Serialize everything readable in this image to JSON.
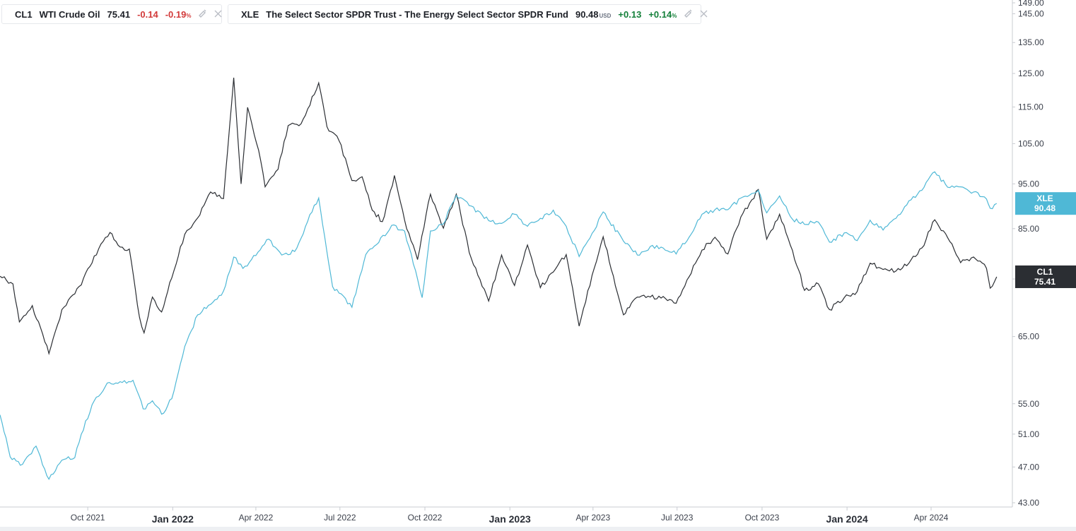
{
  "legend": [
    {
      "symbol": "CL1",
      "name": "WTI Crude Oil",
      "price": "75.41",
      "currency": "",
      "change": "-0.14",
      "change_pct": "-0.19",
      "pct_sign": "%",
      "direction": "down",
      "color": "#2b2e33",
      "icons": [
        "settings-icon",
        "close-icon"
      ]
    },
    {
      "symbol": "XLE",
      "name": "The Select Sector SPDR Trust - The Energy Select Sector SPDR Fund",
      "price": "90.48",
      "currency": "USD",
      "change": "+0.13",
      "change_pct": "+0.14",
      "pct_sign": "%",
      "direction": "up",
      "color": "#4fb8d6",
      "icons": [
        "settings-icon",
        "close-icon"
      ]
    }
  ],
  "chart_data": {
    "type": "line",
    "y_scale": "log",
    "ylim": [
      43,
      149
    ],
    "y_ticks": [
      "149.00",
      "145.00",
      "135.00",
      "125.00",
      "115.00",
      "105.00",
      "95.00",
      "85.00",
      "75.00",
      "65.00",
      "55.00",
      "51.00",
      "47.00",
      "43.00"
    ],
    "xlim": [
      "2021-06-28",
      "2024-06-28"
    ],
    "x_ticks": [
      {
        "label": "Oct 2021",
        "date": "2021-10-01",
        "major": false
      },
      {
        "label": "Jan 2022",
        "date": "2022-01-01",
        "major": true
      },
      {
        "label": "Apr 2022",
        "date": "2022-04-01",
        "major": false
      },
      {
        "label": "Jul 2022",
        "date": "2022-07-01",
        "major": false
      },
      {
        "label": "Oct 2022",
        "date": "2022-10-01",
        "major": false
      },
      {
        "label": "Jan 2023",
        "date": "2023-01-01",
        "major": true
      },
      {
        "label": "Apr 2023",
        "date": "2023-04-01",
        "major": false
      },
      {
        "label": "Jul 2023",
        "date": "2023-07-01",
        "major": false
      },
      {
        "label": "Oct 2023",
        "date": "2023-10-01",
        "major": false
      },
      {
        "label": "Jan 2024",
        "date": "2024-01-01",
        "major": true
      },
      {
        "label": "Apr 2024",
        "date": "2024-04-01",
        "major": false
      }
    ],
    "grid": false,
    "series": [
      {
        "name": "CL1",
        "color": "#2b2e33",
        "last_value": "75.41",
        "points": [
          [
            "2021-06-28",
            75.5
          ],
          [
            "2021-07-12",
            74.1
          ],
          [
            "2021-07-19",
            67.4
          ],
          [
            "2021-08-02",
            70.2
          ],
          [
            "2021-08-20",
            62.3
          ],
          [
            "2021-09-03",
            69.5
          ],
          [
            "2021-09-24",
            73.9
          ],
          [
            "2021-10-08",
            79.4
          ],
          [
            "2021-10-25",
            84.2
          ],
          [
            "2021-11-05",
            81.2
          ],
          [
            "2021-11-15",
            80.8
          ],
          [
            "2021-11-26",
            68.2
          ],
          [
            "2021-12-01",
            65.6
          ],
          [
            "2021-12-10",
            71.7
          ],
          [
            "2021-12-20",
            69.1
          ],
          [
            "2021-12-31",
            75.2
          ],
          [
            "2022-01-14",
            83.8
          ],
          [
            "2022-01-28",
            87.3
          ],
          [
            "2022-02-11",
            93.1
          ],
          [
            "2022-02-25",
            91.6
          ],
          [
            "2022-03-08",
            123.7
          ],
          [
            "2022-03-16",
            95.0
          ],
          [
            "2022-03-23",
            114.9
          ],
          [
            "2022-04-04",
            103.3
          ],
          [
            "2022-04-11",
            94.3
          ],
          [
            "2022-04-25",
            98.5
          ],
          [
            "2022-05-06",
            109.8
          ],
          [
            "2022-05-20",
            110.3
          ],
          [
            "2022-06-08",
            122.1
          ],
          [
            "2022-06-17",
            109.5
          ],
          [
            "2022-06-30",
            105.8
          ],
          [
            "2022-07-14",
            95.8
          ],
          [
            "2022-07-25",
            96.7
          ],
          [
            "2022-08-05",
            89.0
          ],
          [
            "2022-08-16",
            86.5
          ],
          [
            "2022-08-29",
            97.0
          ],
          [
            "2022-09-09",
            86.8
          ],
          [
            "2022-09-23",
            78.7
          ],
          [
            "2022-10-07",
            92.6
          ],
          [
            "2022-10-21",
            85.1
          ],
          [
            "2022-11-04",
            92.6
          ],
          [
            "2022-11-18",
            80.1
          ],
          [
            "2022-12-09",
            71.0
          ],
          [
            "2022-12-23",
            79.6
          ],
          [
            "2023-01-06",
            73.8
          ],
          [
            "2023-01-20",
            81.6
          ],
          [
            "2023-02-03",
            73.4
          ],
          [
            "2023-02-17",
            76.3
          ],
          [
            "2023-03-03",
            79.7
          ],
          [
            "2023-03-17",
            66.7
          ],
          [
            "2023-03-31",
            75.7
          ],
          [
            "2023-04-12",
            83.3
          ],
          [
            "2023-05-04",
            68.6
          ],
          [
            "2023-05-19",
            71.7
          ],
          [
            "2023-06-02",
            71.7
          ],
          [
            "2023-06-16",
            71.8
          ],
          [
            "2023-06-30",
            70.6
          ],
          [
            "2023-07-14",
            75.4
          ],
          [
            "2023-07-28",
            80.6
          ],
          [
            "2023-08-11",
            83.2
          ],
          [
            "2023-08-25",
            79.8
          ],
          [
            "2023-09-08",
            87.5
          ],
          [
            "2023-09-27",
            93.7
          ],
          [
            "2023-10-06",
            82.8
          ],
          [
            "2023-10-20",
            88.1
          ],
          [
            "2023-11-03",
            80.5
          ],
          [
            "2023-11-16",
            72.9
          ],
          [
            "2023-12-01",
            74.1
          ],
          [
            "2023-12-13",
            69.5
          ],
          [
            "2023-12-29",
            71.6
          ],
          [
            "2024-01-12",
            72.7
          ],
          [
            "2024-01-26",
            78.0
          ],
          [
            "2024-02-09",
            76.8
          ],
          [
            "2024-02-23",
            76.5
          ],
          [
            "2024-03-08",
            78.0
          ],
          [
            "2024-03-22",
            81.0
          ],
          [
            "2024-04-05",
            86.9
          ],
          [
            "2024-04-19",
            83.1
          ],
          [
            "2024-05-03",
            78.1
          ],
          [
            "2024-05-17",
            79.2
          ],
          [
            "2024-05-31",
            77.0
          ],
          [
            "2024-06-04",
            73.3
          ],
          [
            "2024-06-11",
            75.4
          ]
        ]
      },
      {
        "name": "XLE",
        "color": "#4fb8d6",
        "last_value": "90.48",
        "points": [
          [
            "2021-06-28",
            53.5
          ],
          [
            "2021-07-09",
            48.2
          ],
          [
            "2021-07-20",
            47.2
          ],
          [
            "2021-08-06",
            49.5
          ],
          [
            "2021-08-20",
            45.6
          ],
          [
            "2021-09-03",
            47.8
          ],
          [
            "2021-09-17",
            48.1
          ],
          [
            "2021-09-24",
            51.0
          ],
          [
            "2021-10-08",
            55.4
          ],
          [
            "2021-10-22",
            57.9
          ],
          [
            "2021-11-05",
            58.1
          ],
          [
            "2021-11-19",
            58.3
          ],
          [
            "2021-11-30",
            54.3
          ],
          [
            "2021-12-10",
            55.4
          ],
          [
            "2021-12-20",
            53.6
          ],
          [
            "2021-12-31",
            55.7
          ],
          [
            "2022-01-14",
            63.4
          ],
          [
            "2022-01-28",
            68.6
          ],
          [
            "2022-02-11",
            70.4
          ],
          [
            "2022-02-25",
            72.8
          ],
          [
            "2022-03-08",
            79.2
          ],
          [
            "2022-03-18",
            77.0
          ],
          [
            "2022-04-01",
            79.5
          ],
          [
            "2022-04-15",
            82.8
          ],
          [
            "2022-04-29",
            79.6
          ],
          [
            "2022-05-13",
            80.3
          ],
          [
            "2022-05-27",
            86.5
          ],
          [
            "2022-06-08",
            91.7
          ],
          [
            "2022-06-23",
            73.6
          ],
          [
            "2022-07-14",
            69.9
          ],
          [
            "2022-07-29",
            79.7
          ],
          [
            "2022-08-12",
            82.1
          ],
          [
            "2022-08-26",
            85.7
          ],
          [
            "2022-09-09",
            84.5
          ],
          [
            "2022-09-28",
            71.6
          ],
          [
            "2022-10-07",
            84.5
          ],
          [
            "2022-10-21",
            86.0
          ],
          [
            "2022-11-04",
            92.3
          ],
          [
            "2022-11-18",
            90.0
          ],
          [
            "2022-12-09",
            86.7
          ],
          [
            "2022-12-23",
            86.1
          ],
          [
            "2023-01-06",
            88.1
          ],
          [
            "2023-01-20",
            85.5
          ],
          [
            "2023-02-03",
            87.2
          ],
          [
            "2023-02-17",
            89.0
          ],
          [
            "2023-03-03",
            85.5
          ],
          [
            "2023-03-17",
            79.3
          ],
          [
            "2023-03-31",
            84.0
          ],
          [
            "2023-04-12",
            88.6
          ],
          [
            "2023-05-04",
            82.4
          ],
          [
            "2023-05-19",
            79.6
          ],
          [
            "2023-06-02",
            81.3
          ],
          [
            "2023-06-16",
            81.0
          ],
          [
            "2023-06-30",
            79.8
          ],
          [
            "2023-07-14",
            83.2
          ],
          [
            "2023-07-28",
            88.1
          ],
          [
            "2023-08-11",
            89.1
          ],
          [
            "2023-08-25",
            89.1
          ],
          [
            "2023-09-08",
            91.7
          ],
          [
            "2023-09-27",
            93.5
          ],
          [
            "2023-10-06",
            88.4
          ],
          [
            "2023-10-20",
            92.2
          ],
          [
            "2023-11-03",
            87.0
          ],
          [
            "2023-11-16",
            85.9
          ],
          [
            "2023-12-01",
            86.4
          ],
          [
            "2023-12-13",
            82.2
          ],
          [
            "2023-12-29",
            84.1
          ],
          [
            "2024-01-12",
            82.5
          ],
          [
            "2024-01-26",
            86.8
          ],
          [
            "2024-02-09",
            84.7
          ],
          [
            "2024-02-23",
            87.2
          ],
          [
            "2024-03-08",
            91.1
          ],
          [
            "2024-03-22",
            93.5
          ],
          [
            "2024-04-05",
            97.9
          ],
          [
            "2024-04-19",
            94.2
          ],
          [
            "2024-05-03",
            94.3
          ],
          [
            "2024-05-17",
            93.1
          ],
          [
            "2024-05-31",
            91.5
          ],
          [
            "2024-06-04",
            89.4
          ],
          [
            "2024-06-11",
            90.5
          ]
        ]
      }
    ]
  }
}
